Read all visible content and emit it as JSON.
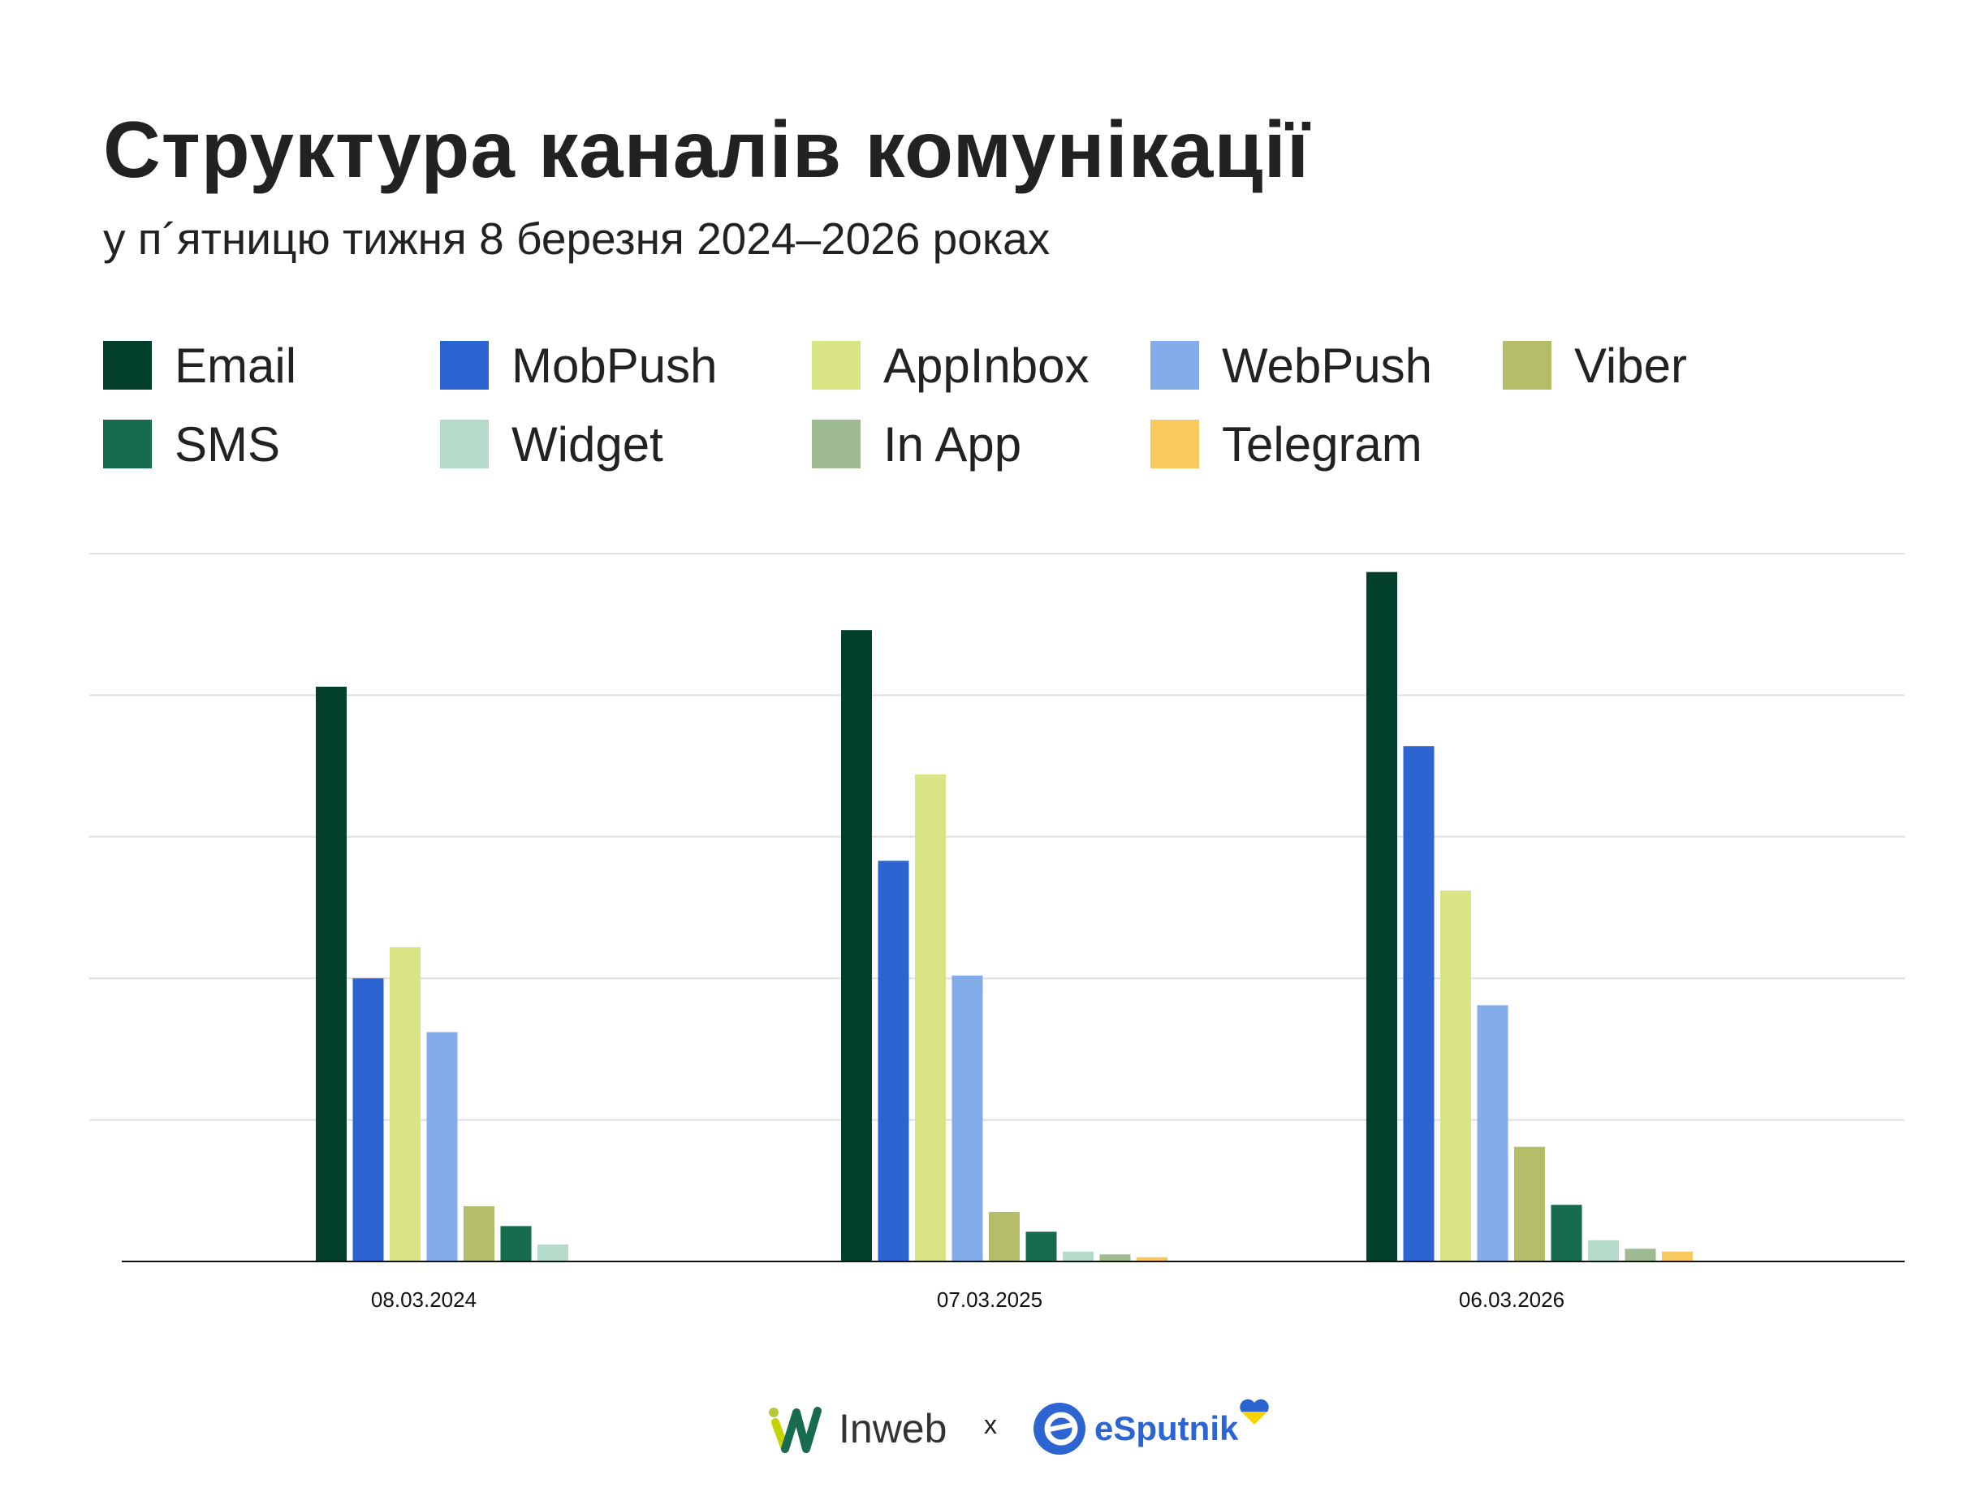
{
  "title": "Структура каналів комунікації",
  "subtitle": "у п´ятницю тижня 8 березня 2024–2026 роках",
  "logos": {
    "left": "Inweb",
    "separator": "x",
    "right": "eSputnik"
  },
  "chart_data": {
    "type": "bar",
    "title": "Структура каналів комунікації",
    "subtitle": "у п´ятницю тижня 8 березня 2024–2026 роках",
    "xlabel": "",
    "ylabel": "",
    "categories": [
      "08.03.2024",
      "07.03.2025",
      "06.03.2026"
    ],
    "ylim": [
      0,
      5
    ],
    "y_ticks_labeled": false,
    "grid": true,
    "legend_position": "top",
    "series": [
      {
        "name": "Email",
        "color": "#023f2c",
        "values": [
          4.06,
          4.46,
          4.87
        ]
      },
      {
        "name": "MobPush",
        "color": "#2c65d1",
        "values": [
          2.0,
          2.83,
          3.64
        ]
      },
      {
        "name": "AppInbox",
        "color": "#d9e584",
        "values": [
          2.22,
          3.44,
          2.62
        ]
      },
      {
        "name": "WebPush",
        "color": "#82ade8",
        "values": [
          1.62,
          2.02,
          1.81
        ]
      },
      {
        "name": "Viber",
        "color": "#b5bd68",
        "values": [
          0.39,
          0.35,
          0.81
        ]
      },
      {
        "name": "SMS",
        "color": "#176b4f",
        "values": [
          0.25,
          0.21,
          0.4
        ]
      },
      {
        "name": "Widget",
        "color": "#b5dccb",
        "values": [
          0.12,
          0.07,
          0.15
        ]
      },
      {
        "name": "In App",
        "color": "#9fbb92",
        "values": [
          0,
          0.05,
          0.09
        ]
      },
      {
        "name": "Telegram",
        "color": "#f8c95c",
        "values": [
          0,
          0.03,
          0.07
        ]
      }
    ]
  }
}
